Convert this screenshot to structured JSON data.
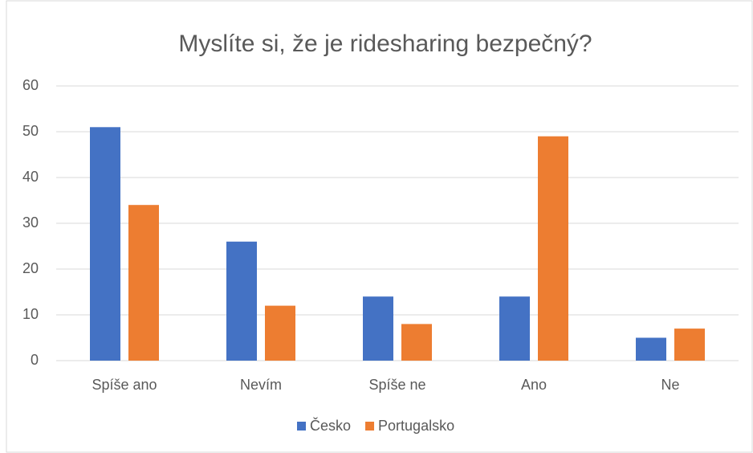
{
  "chart_data": {
    "type": "bar",
    "title": "Myslíte si, že je ridesharing bezpečný?",
    "categories": [
      "Spíše ano",
      "Nevím",
      "Spíše ne",
      "Ano",
      "Ne"
    ],
    "series": [
      {
        "name": "Česko",
        "color": "#4472c4",
        "values": [
          51,
          26,
          14,
          14,
          5
        ]
      },
      {
        "name": "Portugalsko",
        "color": "#ed7d31",
        "values": [
          34,
          12,
          8,
          49,
          7
        ]
      }
    ],
    "ylim": [
      0,
      60
    ],
    "yticks": [
      0,
      10,
      20,
      30,
      40,
      50,
      60
    ],
    "grid": true,
    "legend": "bottom"
  }
}
